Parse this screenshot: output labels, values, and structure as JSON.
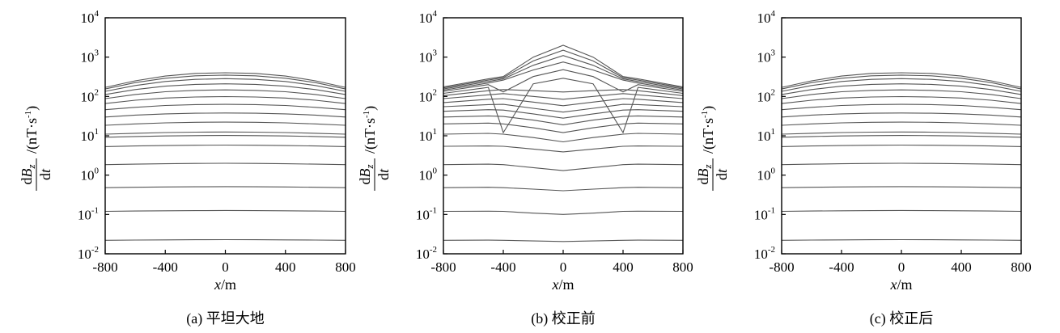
{
  "chart_data": [
    {
      "panel": "a",
      "type": "line",
      "caption": "(a) 平坦大地",
      "xlabel": "x/m",
      "ylabel": "dBz/dt /(nT·s-1)",
      "xlim": [
        -800,
        800
      ],
      "ylim": [
        0.01,
        10000
      ],
      "yscale": "log",
      "x_ticks": [
        "-800",
        "-400",
        "0",
        "400",
        "800"
      ],
      "y_ticks": [
        {
          "base": "10",
          "exp": "4"
        },
        {
          "base": "10",
          "exp": "3"
        },
        {
          "base": "10",
          "exp": "2"
        },
        {
          "base": "10",
          "exp": "1"
        },
        {
          "base": "10",
          "exp": "0"
        },
        {
          "base": "10",
          "exp": "-1"
        },
        {
          "base": "10",
          "exp": "-2"
        }
      ],
      "x": [
        -800,
        -600,
        -400,
        -200,
        0,
        200,
        400,
        600,
        800
      ],
      "series": [
        {
          "values": [
            170,
            250,
            330,
            385,
            400,
            385,
            330,
            250,
            170
          ]
        },
        {
          "values": [
            155,
            225,
            290,
            335,
            350,
            335,
            290,
            225,
            155
          ]
        },
        {
          "values": [
            135,
            190,
            240,
            272,
            283,
            272,
            240,
            190,
            135
          ]
        },
        {
          "values": [
            112,
            150,
            183,
            203,
            210,
            203,
            183,
            150,
            112
          ]
        },
        {
          "values": [
            88,
            112,
            132,
            143,
            147,
            143,
            132,
            112,
            88
          ]
        },
        {
          "values": [
            66,
            80,
            91,
            97,
            99,
            97,
            91,
            80,
            66
          ]
        },
        {
          "values": [
            46,
            53,
            59,
            62,
            63,
            62,
            59,
            53,
            46
          ]
        },
        {
          "values": [
            30,
            33.5,
            36,
            37.5,
            38,
            37.5,
            36,
            33.5,
            30
          ]
        },
        {
          "values": [
            18.5,
            20,
            21.3,
            22,
            22.2,
            22,
            21.3,
            20,
            18.5
          ]
        },
        {
          "values": [
            11,
            11.6,
            12.1,
            12.4,
            12.5,
            12.4,
            12.1,
            11.6,
            11
          ]
        },
        {
          "values": [
            9.2,
            9.6,
            9.9,
            10.1,
            10.2,
            10.1,
            9.9,
            9.6,
            9.2
          ]
        },
        {
          "values": [
            5.3,
            5.5,
            5.65,
            5.75,
            5.8,
            5.75,
            5.65,
            5.5,
            5.3
          ]
        },
        {
          "values": [
            1.85,
            1.9,
            1.95,
            1.98,
            2.0,
            1.98,
            1.95,
            1.9,
            1.85
          ]
        },
        {
          "values": [
            0.48,
            0.49,
            0.5,
            0.505,
            0.51,
            0.505,
            0.5,
            0.49,
            0.48
          ]
        },
        {
          "values": [
            0.12,
            0.122,
            0.124,
            0.125,
            0.126,
            0.125,
            0.124,
            0.122,
            0.12
          ]
        },
        {
          "values": [
            0.022,
            0.0223,
            0.0226,
            0.0228,
            0.0229,
            0.0228,
            0.0226,
            0.0223,
            0.022
          ]
        }
      ]
    },
    {
      "panel": "b",
      "type": "line",
      "caption": "(b) 校正前",
      "xlabel": "x/m",
      "ylabel": "dBz/dt /(nT·s-1)",
      "xlim": [
        -800,
        800
      ],
      "ylim": [
        0.01,
        10000
      ],
      "yscale": "log",
      "x_ticks": [
        "-800",
        "-400",
        "0",
        "400",
        "800"
      ],
      "y_ticks": [
        {
          "base": "10",
          "exp": "4"
        },
        {
          "base": "10",
          "exp": "3"
        },
        {
          "base": "10",
          "exp": "2"
        },
        {
          "base": "10",
          "exp": "1"
        },
        {
          "base": "10",
          "exp": "0"
        },
        {
          "base": "10",
          "exp": "-1"
        },
        {
          "base": "10",
          "exp": "-2"
        }
      ],
      "x": [
        -800,
        -500,
        -400,
        -200,
        0,
        200,
        400,
        500,
        800
      ],
      "series": [
        {
          "values": [
            175,
            280,
            320,
            1000,
            2000,
            1000,
            320,
            280,
            175
          ]
        },
        {
          "values": [
            165,
            260,
            300,
            800,
            1500,
            800,
            300,
            260,
            165
          ]
        },
        {
          "values": [
            155,
            240,
            280,
            620,
            1100,
            620,
            280,
            240,
            155
          ]
        },
        {
          "values": [
            145,
            220,
            260,
            470,
            750,
            470,
            260,
            220,
            145
          ]
        },
        {
          "values": [
            135,
            200,
            130,
            320,
            480,
            320,
            130,
            200,
            135
          ]
        },
        {
          "values": [
            120,
            170,
            12,
            210,
            290,
            210,
            12,
            170,
            120
          ]
        },
        {
          "values": [
            105,
            140,
            150,
            140,
            130,
            140,
            150,
            140,
            105
          ]
        },
        {
          "values": [
            88,
            110,
            118,
            100,
            85,
            100,
            118,
            110,
            88
          ]
        },
        {
          "values": [
            70,
            85,
            88,
            72,
            58,
            72,
            88,
            85,
            70
          ]
        },
        {
          "values": [
            55,
            62,
            63,
            50,
            40,
            50,
            63,
            62,
            55
          ]
        },
        {
          "values": [
            42,
            46,
            45,
            36,
            28,
            36,
            45,
            46,
            42
          ]
        },
        {
          "values": [
            30,
            32,
            31,
            25,
            19,
            25,
            31,
            32,
            30
          ]
        },
        {
          "values": [
            20,
            21,
            20,
            16,
            12,
            16,
            20,
            21,
            20
          ]
        },
        {
          "values": [
            11,
            11.5,
            11,
            9,
            7,
            9,
            11,
            11.5,
            11
          ]
        },
        {
          "values": [
            5.4,
            5.5,
            5.4,
            4.6,
            3.9,
            4.6,
            5.4,
            5.5,
            5.4
          ]
        },
        {
          "values": [
            1.85,
            1.9,
            1.85,
            1.55,
            1.3,
            1.55,
            1.85,
            1.9,
            1.85
          ]
        },
        {
          "values": [
            0.48,
            0.49,
            0.48,
            0.44,
            0.4,
            0.44,
            0.48,
            0.49,
            0.48
          ]
        },
        {
          "values": [
            0.12,
            0.121,
            0.12,
            0.108,
            0.1,
            0.108,
            0.12,
            0.121,
            0.12
          ]
        },
        {
          "values": [
            0.022,
            0.0222,
            0.022,
            0.0212,
            0.0205,
            0.0212,
            0.022,
            0.0222,
            0.022
          ]
        }
      ]
    },
    {
      "panel": "c",
      "type": "line",
      "caption": "(c) 校正后",
      "xlabel": "x/m",
      "ylabel": "dBz/dt /(nT·s-1)",
      "xlim": [
        -800,
        800
      ],
      "ylim": [
        0.01,
        10000
      ],
      "yscale": "log",
      "x_ticks": [
        "-800",
        "-400",
        "0",
        "400",
        "800"
      ],
      "y_ticks": [
        {
          "base": "10",
          "exp": "4"
        },
        {
          "base": "10",
          "exp": "3"
        },
        {
          "base": "10",
          "exp": "2"
        },
        {
          "base": "10",
          "exp": "1"
        },
        {
          "base": "10",
          "exp": "0"
        },
        {
          "base": "10",
          "exp": "-1"
        },
        {
          "base": "10",
          "exp": "-2"
        }
      ],
      "x": [
        -800,
        -600,
        -400,
        -200,
        0,
        200,
        400,
        600,
        800
      ],
      "series": [
        {
          "values": [
            170,
            250,
            330,
            385,
            400,
            385,
            330,
            250,
            170
          ]
        },
        {
          "values": [
            155,
            225,
            290,
            335,
            350,
            335,
            290,
            225,
            155
          ]
        },
        {
          "values": [
            135,
            190,
            240,
            272,
            283,
            272,
            240,
            190,
            135
          ]
        },
        {
          "values": [
            112,
            150,
            183,
            203,
            210,
            203,
            183,
            150,
            112
          ]
        },
        {
          "values": [
            88,
            112,
            132,
            143,
            147,
            143,
            132,
            112,
            88
          ]
        },
        {
          "values": [
            66,
            80,
            91,
            97,
            99,
            97,
            91,
            80,
            66
          ]
        },
        {
          "values": [
            46,
            53,
            59,
            62,
            63,
            62,
            59,
            53,
            46
          ]
        },
        {
          "values": [
            30,
            33.5,
            36,
            37.5,
            38,
            37.5,
            36,
            33.5,
            30
          ]
        },
        {
          "values": [
            18.5,
            20,
            21.3,
            22,
            22.2,
            22,
            21.3,
            20,
            18.5
          ]
        },
        {
          "values": [
            11,
            11.6,
            12.1,
            12.4,
            12.5,
            12.4,
            12.1,
            11.6,
            11
          ]
        },
        {
          "values": [
            9.2,
            9.6,
            9.9,
            10.1,
            10.2,
            10.1,
            9.9,
            9.6,
            9.2
          ]
        },
        {
          "values": [
            5.3,
            5.5,
            5.65,
            5.75,
            5.8,
            5.75,
            5.65,
            5.5,
            5.3
          ]
        },
        {
          "values": [
            1.85,
            1.9,
            1.95,
            1.98,
            2.0,
            1.98,
            1.95,
            1.9,
            1.85
          ]
        },
        {
          "values": [
            0.48,
            0.49,
            0.5,
            0.505,
            0.51,
            0.505,
            0.5,
            0.49,
            0.48
          ]
        },
        {
          "values": [
            0.12,
            0.122,
            0.124,
            0.125,
            0.126,
            0.125,
            0.124,
            0.122,
            0.12
          ]
        },
        {
          "values": [
            0.022,
            0.0223,
            0.0226,
            0.0228,
            0.0229,
            0.0228,
            0.0226,
            0.0223,
            0.022
          ]
        }
      ]
    }
  ]
}
